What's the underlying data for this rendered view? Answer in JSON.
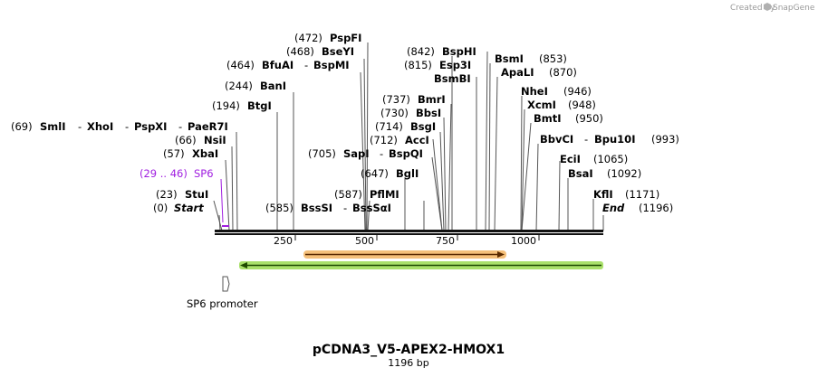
{
  "credit": "Created by",
  "brand": "SnapGene",
  "title": "pCDNA3_V5-APEX2-HMOX1",
  "length_label": "1196 bp",
  "sequence_length": 1196,
  "ruler_ticks": [
    "250",
    "500",
    "750",
    "1000"
  ],
  "feature_label": "SP6 promoter",
  "colors": {
    "purple": "#a01ee0",
    "orange": "#f5a33a",
    "green": "#8ed03a"
  },
  "sites": [
    {
      "pos": "(0)",
      "name": "Start",
      "site": 0
    },
    {
      "pos": "(23)",
      "name": "StuI",
      "site": 23
    },
    {
      "pos": "(29 .. 46)",
      "name": "SP6",
      "site": 29
    },
    {
      "pos": "(57)",
      "name": "XbaI",
      "site": 57
    },
    {
      "pos": "(66)",
      "name": "NsiI",
      "site": 66
    },
    {
      "pos": "(69)",
      "name": "SmlI",
      "names2": "XhoI",
      "names3": "PspXI",
      "names4": "PaeR7I",
      "site": 69
    },
    {
      "pos": "(194)",
      "name": "BtgI",
      "site": 194
    },
    {
      "pos": "(244)",
      "name": "BanI",
      "site": 244
    },
    {
      "pos": "(585)",
      "name": "BssSI",
      "names2": "BssSαI",
      "site": 585
    },
    {
      "pos": "(587)",
      "name": "PflMI",
      "site": 587
    },
    {
      "pos": "(464)",
      "name": "BfuAI",
      "names2": "BspMI",
      "site": 464
    },
    {
      "pos": "(468)",
      "name": "BseYI",
      "site": 468
    },
    {
      "pos": "(472)",
      "name": "PspFI",
      "site": 472
    },
    {
      "pos": "(647)",
      "name": "BglI",
      "site": 647
    },
    {
      "pos": "(705)",
      "name": "SapI",
      "names2": "BspQI",
      "site": 705
    },
    {
      "pos": "(712)",
      "name": "AccI",
      "site": 712
    },
    {
      "pos": "(714)",
      "name": "BsgI",
      "site": 714
    },
    {
      "pos": "(730)",
      "name": "BbsI",
      "site": 730
    },
    {
      "pos": "(737)",
      "name": "BmrI",
      "site": 737
    },
    {
      "pos": "(815)",
      "name": "Esp3I",
      "site": 815
    },
    {
      "pos": "(842)",
      "name": "BspHI",
      "site": 842
    },
    {
      "name": "BsmBI",
      "site": 815
    },
    {
      "pos": "(853)",
      "name": "BsmI",
      "site": 853
    },
    {
      "pos": "(870)",
      "name": "ApaLI",
      "site": 870
    },
    {
      "pos": "(946)",
      "name": "NheI",
      "site": 946
    },
    {
      "pos": "(948)",
      "name": "XcmI",
      "site": 948
    },
    {
      "pos": "(950)",
      "name": "BmtI",
      "site": 950
    },
    {
      "pos": "(993)",
      "name": "BbvCI",
      "names2": "Bpu10I",
      "site": 993
    },
    {
      "pos": "(1065)",
      "name": "EciI",
      "site": 1065
    },
    {
      "pos": "(1092)",
      "name": "BsaI",
      "site": 1092
    },
    {
      "pos": "(1171)",
      "name": "KflI",
      "site": 1171
    },
    {
      "pos": "(1196)",
      "name": "End",
      "site": 1196
    }
  ]
}
